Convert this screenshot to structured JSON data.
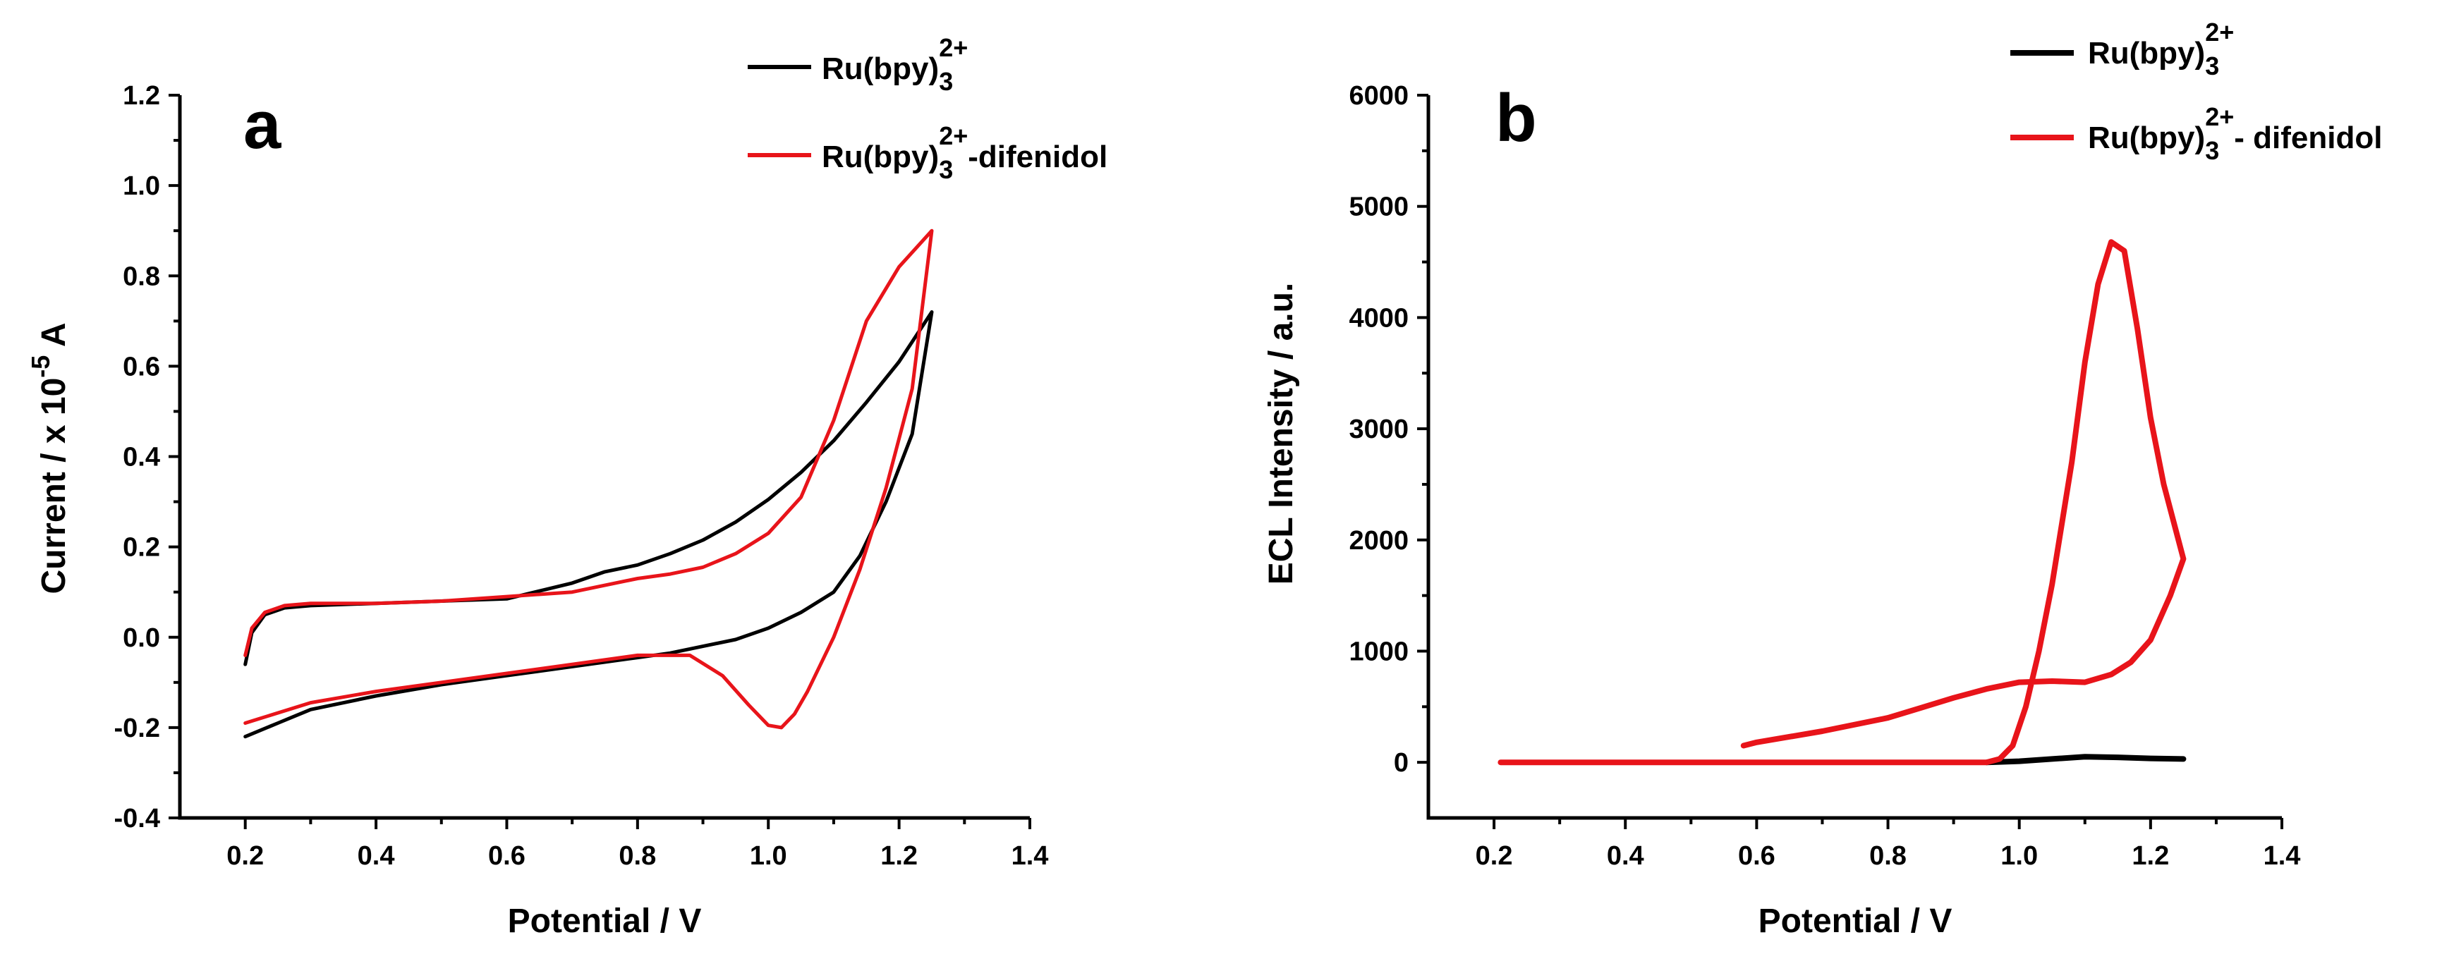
{
  "chart_data": [
    {
      "type": "line",
      "panel_label": "a",
      "xlabel": "Potential / V",
      "ylabel": {
        "prefix": "Current / x 10",
        "exponent": "-5",
        "suffix": " A"
      },
      "xlim": [
        0.1,
        1.4
      ],
      "ylim": [
        -0.4,
        1.2
      ],
      "xticks": [
        "0.2",
        "0.4",
        "0.6",
        "0.8",
        "1.0",
        "1.2",
        "1.4"
      ],
      "xtick_values": [
        0.2,
        0.4,
        0.6,
        0.8,
        1.0,
        1.2,
        1.4
      ],
      "yticks": [
        "-0.4",
        "-0.2",
        "0.0",
        "0.2",
        "0.4",
        "0.6",
        "0.8",
        "1.0",
        "1.2"
      ],
      "ytick_values": [
        -0.4,
        -0.2,
        0.0,
        0.2,
        0.4,
        0.6,
        0.8,
        1.0,
        1.2
      ],
      "legend_position": "top-right",
      "series": [
        {
          "name": "Ru(bpy)3 2+",
          "legend": {
            "base": "Ru(bpy)",
            "sub": "3",
            "sup": "2+",
            "tail": ""
          },
          "color": "#000000",
          "x": [
            0.2,
            0.21,
            0.23,
            0.26,
            0.3,
            0.4,
            0.5,
            0.6,
            0.7,
            0.75,
            0.8,
            0.85,
            0.9,
            0.95,
            1.0,
            1.05,
            1.1,
            1.15,
            1.2,
            1.25,
            1.22,
            1.18,
            1.14,
            1.1,
            1.05,
            1.0,
            0.95,
            0.9,
            0.85,
            0.8,
            0.7,
            0.6,
            0.5,
            0.4,
            0.3,
            0.25,
            0.2
          ],
          "y": [
            -0.06,
            0.01,
            0.05,
            0.065,
            0.07,
            0.075,
            0.08,
            0.085,
            0.12,
            0.145,
            0.16,
            0.185,
            0.215,
            0.255,
            0.305,
            0.365,
            0.435,
            0.52,
            0.61,
            0.72,
            0.45,
            0.3,
            0.18,
            0.1,
            0.055,
            0.02,
            -0.005,
            -0.02,
            -0.035,
            -0.045,
            -0.065,
            -0.085,
            -0.105,
            -0.13,
            -0.16,
            -0.19,
            -0.22
          ]
        },
        {
          "name": "Ru(bpy)3 2+ -difenidol",
          "legend": {
            "base": "Ru(bpy)",
            "sub": "3",
            "sup": "2+",
            "tail": "-difenidol"
          },
          "color": "#e8141a",
          "x": [
            0.2,
            0.21,
            0.23,
            0.26,
            0.3,
            0.4,
            0.5,
            0.6,
            0.7,
            0.75,
            0.8,
            0.85,
            0.9,
            0.95,
            1.0,
            1.05,
            1.1,
            1.15,
            1.2,
            1.25,
            1.22,
            1.18,
            1.14,
            1.1,
            1.06,
            1.04,
            1.02,
            1.0,
            0.97,
            0.93,
            0.88,
            0.8,
            0.7,
            0.6,
            0.5,
            0.4,
            0.3,
            0.2
          ],
          "y": [
            -0.04,
            0.02,
            0.055,
            0.07,
            0.075,
            0.075,
            0.08,
            0.09,
            0.1,
            0.115,
            0.13,
            0.14,
            0.155,
            0.185,
            0.23,
            0.31,
            0.48,
            0.7,
            0.82,
            0.9,
            0.55,
            0.33,
            0.15,
            0.0,
            -0.12,
            -0.17,
            -0.2,
            -0.195,
            -0.15,
            -0.085,
            -0.04,
            -0.04,
            -0.06,
            -0.08,
            -0.1,
            -0.12,
            -0.145,
            -0.19
          ]
        }
      ]
    },
    {
      "type": "line",
      "panel_label": "b",
      "xlabel": "Potential / V",
      "ylabel": {
        "prefix": "ECL Intensity / a.u.",
        "exponent": "",
        "suffix": ""
      },
      "xlim": [
        0.1,
        1.4
      ],
      "ylim": [
        -500,
        6000
      ],
      "xticks": [
        "0.2",
        "0.4",
        "0.6",
        "0.8",
        "1.0",
        "1.2",
        "1.4"
      ],
      "xtick_values": [
        0.2,
        0.4,
        0.6,
        0.8,
        1.0,
        1.2,
        1.4
      ],
      "yticks": [
        "0",
        "1000",
        "2000",
        "3000",
        "4000",
        "5000",
        "6000"
      ],
      "ytick_values": [
        0,
        1000,
        2000,
        3000,
        4000,
        5000,
        6000
      ],
      "legend_position": "top-right",
      "series": [
        {
          "name": "Ru(bpy)3 2+",
          "legend": {
            "base": "Ru(bpy)",
            "sub": "3",
            "sup": "2+",
            "tail": ""
          },
          "color": "#000000",
          "x": [
            0.95,
            1.0,
            1.05,
            1.1,
            1.15,
            1.2,
            1.25
          ],
          "y": [
            0,
            10,
            30,
            50,
            45,
            35,
            30
          ]
        },
        {
          "name": "Ru(bpy)3 2+ - difenidol",
          "legend": {
            "base": "Ru(bpy)",
            "sub": "3",
            "sup": "2+",
            "tail": "- difenidol"
          },
          "color": "#e8141a",
          "x": [
            0.21,
            0.4,
            0.6,
            0.8,
            0.9,
            0.95,
            0.97,
            0.99,
            1.01,
            1.03,
            1.05,
            1.08,
            1.1,
            1.12,
            1.14,
            1.16,
            1.18,
            1.2,
            1.22,
            1.25,
            1.23,
            1.2,
            1.17,
            1.14,
            1.1,
            1.05,
            1.0,
            0.95,
            0.9,
            0.85,
            0.8,
            0.7,
            0.6,
            0.58
          ],
          "y": [
            0,
            0,
            0,
            0,
            0,
            0,
            30,
            150,
            500,
            1000,
            1600,
            2700,
            3600,
            4300,
            4680,
            4600,
            3900,
            3100,
            2500,
            1830,
            1500,
            1100,
            900,
            790,
            720,
            730,
            720,
            660,
            580,
            490,
            400,
            280,
            180,
            150
          ]
        }
      ]
    }
  ]
}
